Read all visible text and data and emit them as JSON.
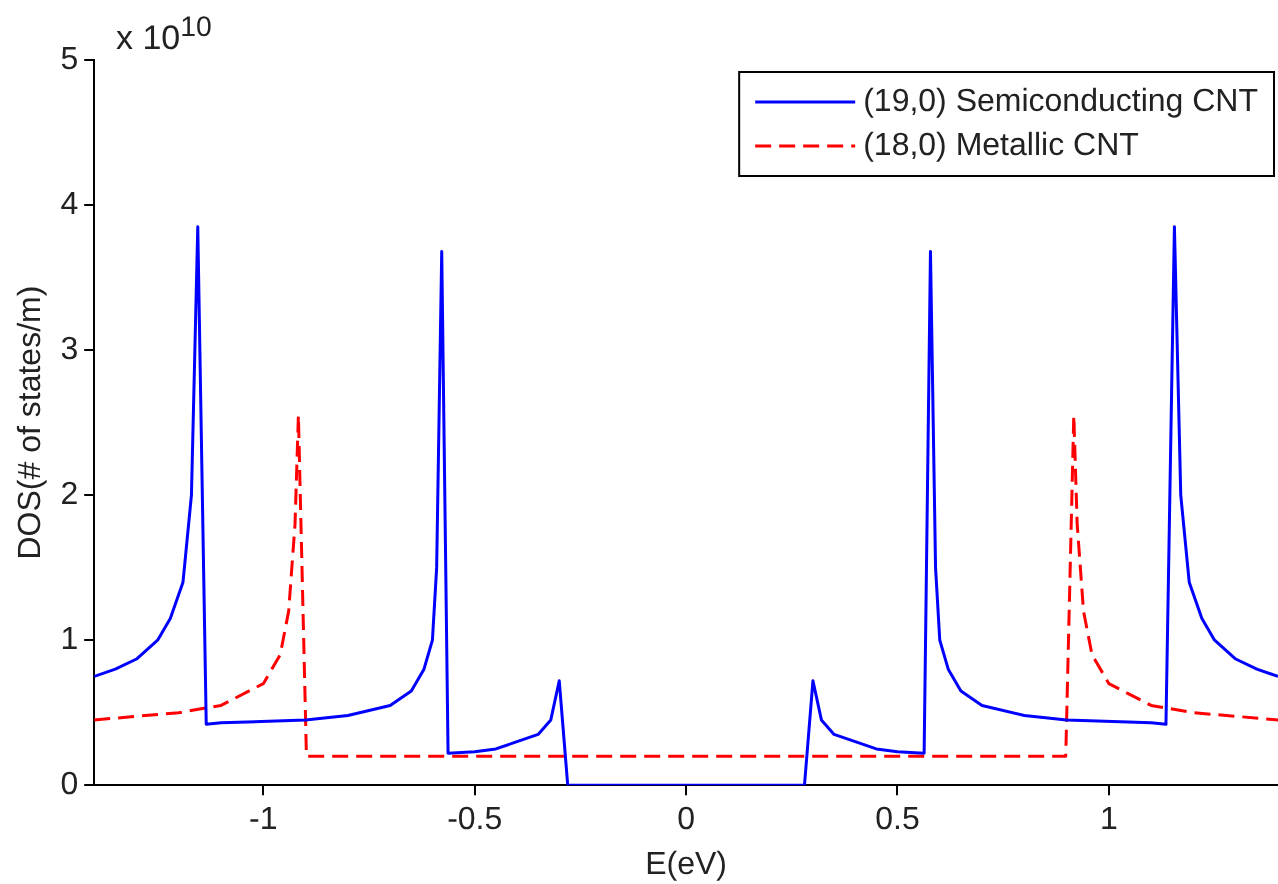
{
  "chart_data": {
    "type": "line",
    "xlabel": "E(eV)",
    "ylabel": "DOS(# of states/m)",
    "annotations": [
      "x 10$^{10}$"
    ],
    "xlim": [
      -1.4,
      1.4
    ],
    "xticks": [
      -1,
      -0.5,
      0,
      0.5,
      1
    ],
    "ylim": [
      0,
      5
    ],
    "yticks": [
      0,
      1,
      2,
      3,
      4,
      5
    ],
    "grid": false,
    "legend": "top right",
    "marker": "none",
    "series": [
      {
        "name": "(19,0) Semiconducting CNT",
        "color": "#0000ff",
        "line_style": "solid",
        "x": [
          -1.4,
          -1.35,
          -1.3,
          -1.25,
          -1.22,
          -1.19,
          -1.17,
          -1.155,
          -1.135,
          -1.1,
          -0.9,
          -0.8,
          -0.7,
          -0.65,
          -0.62,
          -0.6,
          -0.59,
          -0.578,
          -0.563,
          -0.5,
          -0.45,
          -0.4,
          -0.35,
          -0.32,
          -0.3,
          -0.28,
          0.28,
          0.3,
          0.32,
          0.35,
          0.4,
          0.45,
          0.5,
          0.563,
          0.578,
          0.59,
          0.6,
          0.62,
          0.65,
          0.7,
          0.8,
          0.9,
          1.1,
          1.135,
          1.155,
          1.17,
          1.19,
          1.22,
          1.25,
          1.3,
          1.35,
          1.4
        ],
        "values": [
          0.75,
          0.8,
          0.87,
          1.0,
          1.15,
          1.4,
          2.0,
          3.85,
          0.42,
          0.43,
          0.45,
          0.48,
          0.55,
          0.65,
          0.8,
          1.0,
          1.5,
          3.68,
          0.22,
          0.23,
          0.25,
          0.3,
          0.35,
          0.45,
          0.72,
          0,
          0,
          0.72,
          0.45,
          0.35,
          0.3,
          0.25,
          0.23,
          0.22,
          3.68,
          1.5,
          1.0,
          0.8,
          0.65,
          0.55,
          0.48,
          0.45,
          0.43,
          0.42,
          3.85,
          2.0,
          1.4,
          1.15,
          1.0,
          0.87,
          0.8,
          0.75
        ]
      },
      {
        "name": "(18,0) Metallic CNT",
        "color": "#ff0000",
        "line_style": "dashed",
        "x": [
          -1.4,
          -1.2,
          -1.1,
          -1.0,
          -0.96,
          -0.94,
          -0.925,
          -0.917,
          -0.898,
          0.898,
          0.917,
          0.925,
          0.94,
          0.96,
          1.0,
          1.1,
          1.2,
          1.4
        ],
        "values": [
          0.45,
          0.5,
          0.55,
          0.7,
          0.9,
          1.2,
          1.8,
          2.55,
          0.2,
          0.2,
          2.55,
          1.8,
          1.2,
          0.9,
          0.7,
          0.55,
          0.5,
          0.45
        ]
      }
    ]
  }
}
